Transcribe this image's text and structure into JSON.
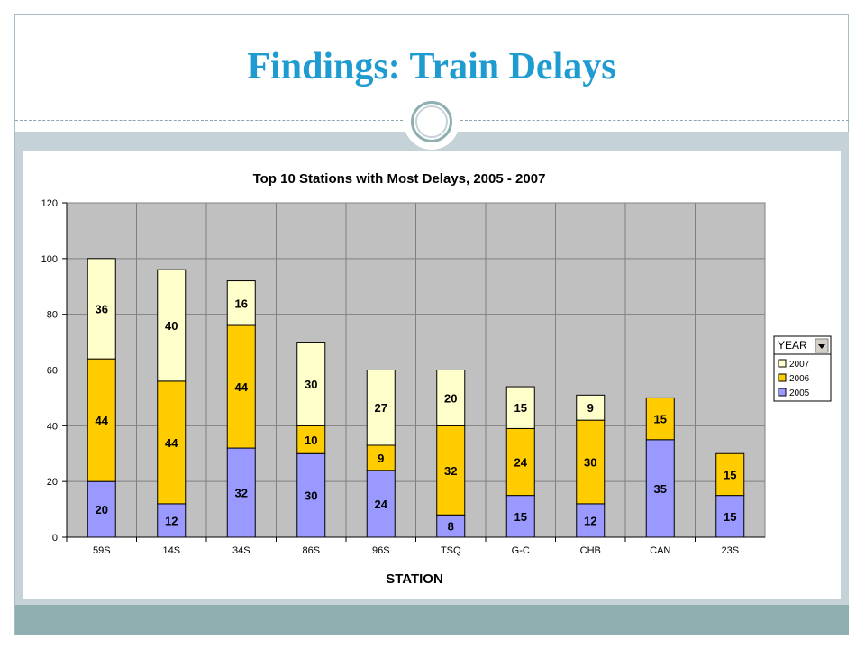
{
  "slide": {
    "title": "Findings: Train Delays"
  },
  "colors": {
    "title": "#1e9bd0",
    "series_2005": "#9999ff",
    "series_2006": "#ffcc00",
    "series_2007": "#ffffcc",
    "plot_background": "#c0c0c0",
    "accent_band": "#c5d2d7",
    "footer_band": "#8eaeb0"
  },
  "chart_data": {
    "type": "bar",
    "stacked": true,
    "title": "Top 10 Stations with Most Delays, 2005 - 2007",
    "xlabel": "STATION",
    "ylabel": "",
    "ylim": [
      0,
      120
    ],
    "yticks": [
      0,
      20,
      40,
      60,
      80,
      100,
      120
    ],
    "grid": true,
    "legend_position": "right",
    "legend_title": "YEAR",
    "categories": [
      "59S",
      "14S",
      "34S",
      "86S",
      "96S",
      "TSQ",
      "G-C",
      "CHB",
      "CAN",
      "23S"
    ],
    "series": [
      {
        "name": "2005",
        "values": [
          20,
          12,
          32,
          30,
          24,
          8,
          15,
          12,
          35,
          15
        ]
      },
      {
        "name": "2006",
        "values": [
          44,
          44,
          44,
          10,
          9,
          32,
          24,
          30,
          15,
          15
        ]
      },
      {
        "name": "2007",
        "values": [
          36,
          40,
          16,
          30,
          27,
          20,
          15,
          9,
          0,
          0
        ]
      }
    ],
    "legend_order": [
      "2007",
      "2006",
      "2005"
    ]
  }
}
